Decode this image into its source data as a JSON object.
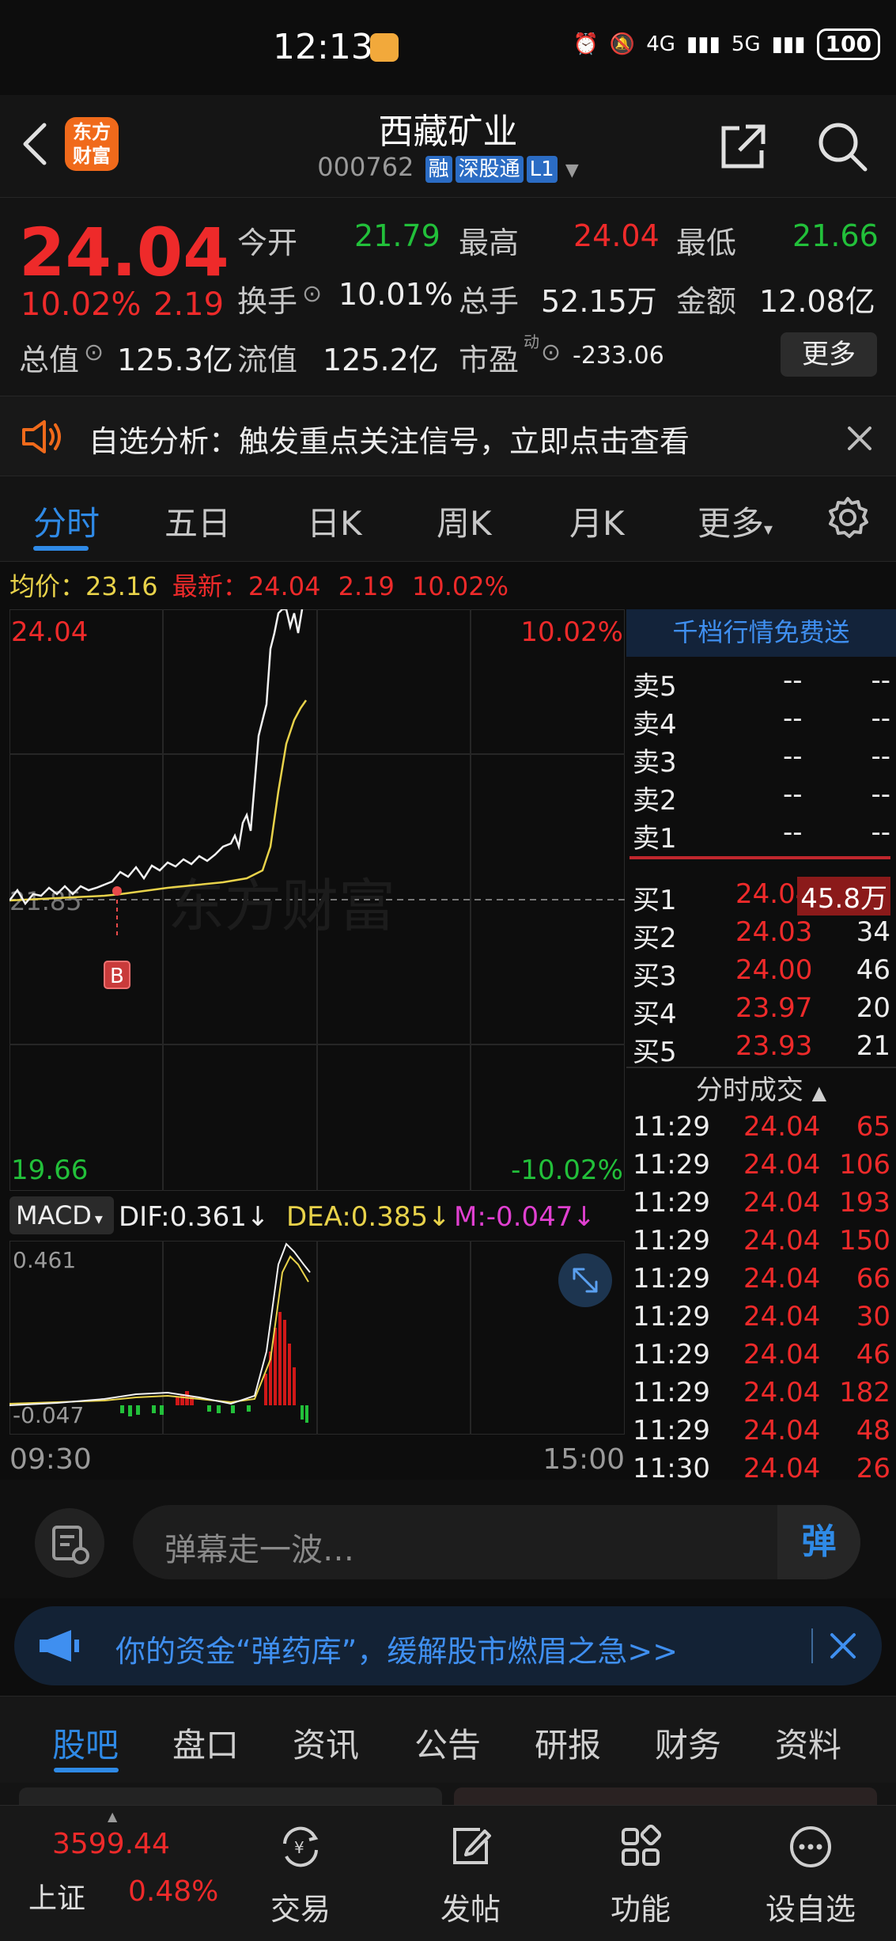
{
  "status": {
    "time": "12:13",
    "network1": "4G",
    "network2": "5G",
    "battery": "100"
  },
  "header": {
    "title": "西藏矿业",
    "code": "000762",
    "tags": [
      "融",
      "深股通",
      "L1"
    ],
    "logo_text": "东方财富"
  },
  "quote": {
    "price": "24.04",
    "change_pct": "10.02%",
    "change": "2.19",
    "open_label": "今开",
    "open": "21.79",
    "high_label": "最高",
    "high": "24.04",
    "low_label": "最低",
    "low": "21.66",
    "turnover_label": "换手",
    "turnover": "10.01%",
    "volume_label": "总手",
    "volume": "52.15万",
    "amount_label": "金额",
    "amount": "12.08亿",
    "mktcap_label": "总值",
    "mktcap": "125.3亿",
    "float_label": "流值",
    "float": "125.2亿",
    "pe_label": "市盈",
    "pe_sup": "动",
    "pe": "-233.06",
    "more": "更多"
  },
  "analysis": {
    "text": "自选分析：触发重点关注信号，立即点击查看"
  },
  "chart_tabs": [
    "分时",
    "五日",
    "日K",
    "周K",
    "月K",
    "更多"
  ],
  "avg_line": {
    "avg_label": "均价：",
    "avg": "23.16",
    "latest_label": "最新：",
    "latest": "24.04",
    "chg": "2.19",
    "pct": "10.02%"
  },
  "chart_labels": {
    "y_top": "24.04",
    "y_bottom": "19.66",
    "pct_top": "10.02%",
    "pct_bottom": "-10.02%",
    "prev_close": "21.85",
    "buy_marker": "B",
    "watermark": "东方财富"
  },
  "macd": {
    "button": "MACD",
    "dif": "DIF:0.361",
    "dea": "DEA:0.385",
    "m": "M:-0.047",
    "top": "0.461",
    "bottom": "-0.047"
  },
  "time_axis": {
    "start": "09:30",
    "end": "15:00"
  },
  "order_book": {
    "promo": "千档行情免费送",
    "asks": [
      {
        "label": "卖5",
        "price": "--",
        "vol": "--"
      },
      {
        "label": "卖4",
        "price": "--",
        "vol": "--"
      },
      {
        "label": "卖3",
        "price": "--",
        "vol": "--"
      },
      {
        "label": "卖2",
        "price": "--",
        "vol": "--"
      },
      {
        "label": "卖1",
        "price": "--",
        "vol": "--"
      }
    ],
    "bids": [
      {
        "label": "买1",
        "price": "24.04",
        "vol": "45.8万"
      },
      {
        "label": "买2",
        "price": "24.03",
        "vol": "34"
      },
      {
        "label": "买3",
        "price": "24.00",
        "vol": "46"
      },
      {
        "label": "买4",
        "price": "23.97",
        "vol": "20"
      },
      {
        "label": "买5",
        "price": "23.93",
        "vol": "21"
      }
    ],
    "trades_title": "分时成交",
    "trades": [
      {
        "time": "11:29",
        "price": "24.04",
        "vol": "65"
      },
      {
        "time": "11:29",
        "price": "24.04",
        "vol": "106"
      },
      {
        "time": "11:29",
        "price": "24.04",
        "vol": "193"
      },
      {
        "time": "11:29",
        "price": "24.04",
        "vol": "150"
      },
      {
        "time": "11:29",
        "price": "24.04",
        "vol": "66"
      },
      {
        "time": "11:29",
        "price": "24.04",
        "vol": "30"
      },
      {
        "time": "11:29",
        "price": "24.04",
        "vol": "46"
      },
      {
        "time": "11:29",
        "price": "24.04",
        "vol": "182"
      },
      {
        "time": "11:29",
        "price": "24.04",
        "vol": "48"
      },
      {
        "time": "11:30",
        "price": "24.04",
        "vol": "26"
      }
    ]
  },
  "danmu": {
    "placeholder": "弹幕走一波…",
    "send": "弹"
  },
  "ad": {
    "text": "你的资金“弹药库”，缓解股市燃眉之急>>"
  },
  "bottom_tabs": [
    "股吧",
    "盘口",
    "资讯",
    "公告",
    "研报",
    "财务",
    "资料"
  ],
  "nav": {
    "index_price": "3599.44",
    "index_name": "上证",
    "index_pct": "0.48%",
    "items": [
      "交易",
      "发帖",
      "功能",
      "设自选"
    ]
  },
  "colors": {
    "up": "#ee2a2a",
    "down": "#22c03a",
    "accent": "#2f8ae6",
    "avg": "#e8d24a",
    "brand": "#f06a1b"
  }
}
